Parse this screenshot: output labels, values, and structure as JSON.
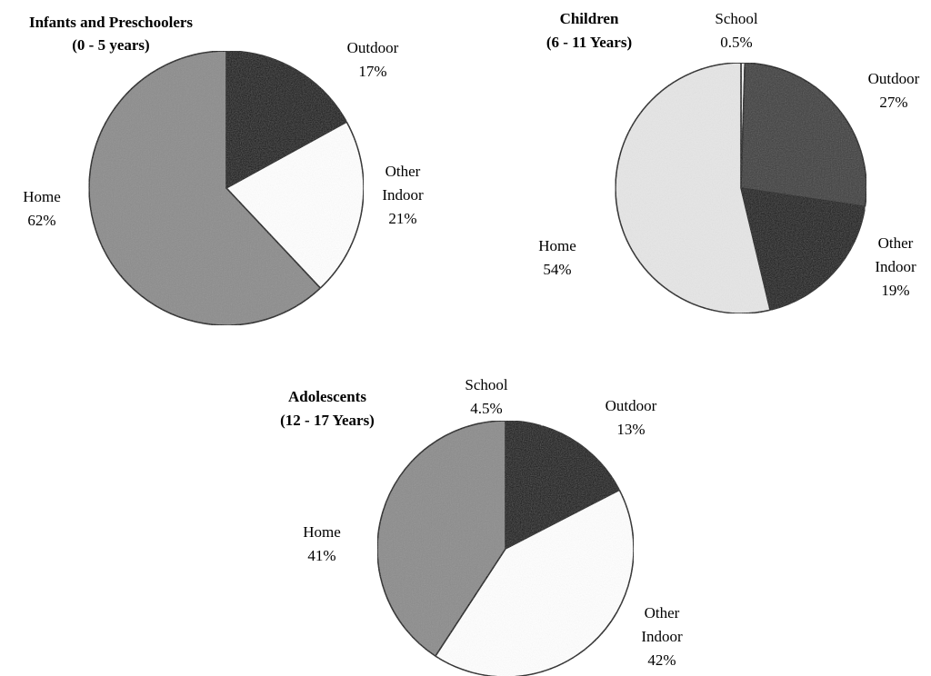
{
  "colors": {
    "home": "#8c8c8c",
    "outdoor_infants": "#0a0a0a",
    "outdoor_children": "#3a3a3a",
    "outdoor_adolescents": "#0a0a0a",
    "other_indoor_infants": "#ffffff",
    "other_indoor_children": "#101010",
    "other_indoor_adolescents": "#ffffff",
    "school": "#f0f0f0",
    "school_adolescents": "#050505",
    "home_children": "#e6e6e6"
  },
  "chart_data": [
    {
      "type": "pie",
      "title": [
        "Infants and Preschoolers",
        "(0 - 5 years)"
      ],
      "slices": [
        {
          "name": "Outdoor",
          "value": 17,
          "label": "17%",
          "color": "#0a0a0a"
        },
        {
          "name": "Other Indoor",
          "value": 21,
          "label": "21%",
          "color": "#ffffff"
        },
        {
          "name": "Home",
          "value": 62,
          "label": "62%",
          "color": "#8c8c8c"
        }
      ]
    },
    {
      "type": "pie",
      "title": [
        "Children",
        "(6 - 11 Years)"
      ],
      "slices": [
        {
          "name": "School",
          "value": 0.5,
          "label": "0.5%",
          "color": "#f0f0f0"
        },
        {
          "name": "Outdoor",
          "value": 27,
          "label": "27%",
          "color": "#3a3a3a"
        },
        {
          "name": "Other Indoor",
          "value": 19,
          "label": "19%",
          "color": "#101010"
        },
        {
          "name": "Home",
          "value": 54,
          "label": "54%",
          "color": "#e6e6e6"
        }
      ]
    },
    {
      "type": "pie",
      "title": [
        "Adolescents",
        "(12 - 17 Years)"
      ],
      "slices": [
        {
          "name": "School",
          "value": 4.5,
          "label": "4.5%",
          "color": "#050505"
        },
        {
          "name": "Outdoor",
          "value": 13,
          "label": "13%",
          "color": "#0a0a0a"
        },
        {
          "name": "Other Indoor",
          "value": 42,
          "label": "42%",
          "color": "#ffffff"
        },
        {
          "name": "Home",
          "value": 41,
          "label": "41%",
          "color": "#8c8c8c"
        }
      ]
    }
  ]
}
